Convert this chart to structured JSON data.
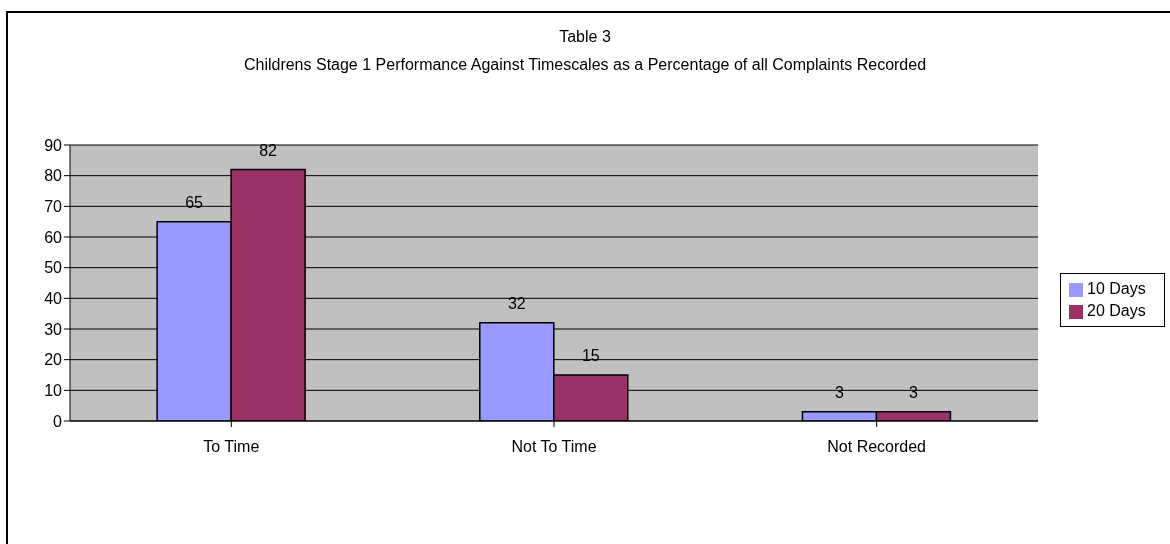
{
  "chart_data": {
    "type": "bar",
    "title": "Table 3",
    "subtitle": "Childrens Stage 1 Performance Against Timescales as a Percentage of all Complaints Recorded",
    "categories": [
      "To Time",
      "Not To Time",
      "Not Recorded"
    ],
    "series": [
      {
        "name": "10 Days",
        "color": "#9999ff",
        "values": [
          65,
          32,
          3
        ]
      },
      {
        "name": "20 Days",
        "color": "#993366",
        "values": [
          82,
          15,
          3
        ]
      }
    ],
    "ylim": [
      0,
      90
    ],
    "yticks": [
      0,
      10,
      20,
      30,
      40,
      50,
      60,
      70,
      80,
      90
    ],
    "grid": "y",
    "legend": "right",
    "data_labels": true
  }
}
